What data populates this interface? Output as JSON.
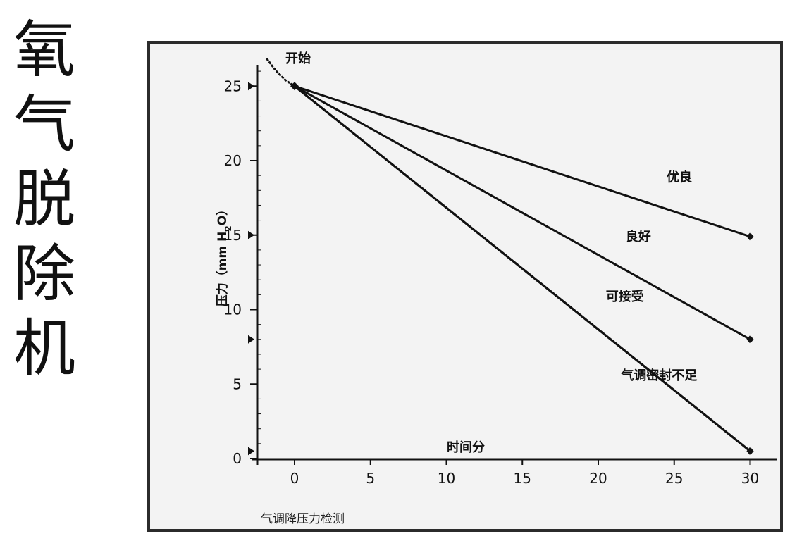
{
  "side_title": [
    "氧",
    "气",
    "脱",
    "除",
    "机"
  ],
  "caption": "气调降压力检测",
  "colors": {
    "line": "#111111",
    "frame": "#2b2b2b",
    "plot_background": "#f3f3f3"
  },
  "chart_data": {
    "type": "line",
    "title": "",
    "xlabel": "时间分",
    "ylabel": "压力（mm H2O）",
    "ylabel_parts": {
      "main": "压力（mm H",
      "sub": "2",
      "tail": "O）"
    },
    "xlim": [
      -2,
      31
    ],
    "ylim": [
      0,
      27
    ],
    "x_ticks": [
      0,
      5,
      10,
      15,
      20,
      25,
      30
    ],
    "y_ticks": [
      0,
      5,
      10,
      15,
      20,
      25
    ],
    "y_arrow_marks": [
      0.5,
      8,
      15,
      25
    ],
    "start_label": "开始",
    "start_curve": [
      [
        -1.8,
        26.8
      ],
      [
        -1.2,
        26.0
      ],
      [
        -0.6,
        25.4
      ],
      [
        0,
        25
      ]
    ],
    "series": [
      {
        "name": "优良",
        "x": [
          0,
          30
        ],
        "y": [
          25,
          14.9
        ],
        "label_anchor": [
          24.5,
          18.6
        ]
      },
      {
        "name": "良好",
        "x": [
          0,
          30
        ],
        "y": [
          25,
          8.0
        ],
        "label_anchor": [
          21.8,
          14.6
        ]
      },
      {
        "name": "可接受",
        "x": [
          0,
          30
        ],
        "y": [
          25,
          0.5
        ],
        "label_anchor": [
          20.5,
          10.6
        ]
      },
      {
        "name": "气调密封不足",
        "x": [
          0,
          30
        ],
        "y": [
          25,
          0.5
        ],
        "label_anchor": [
          21.5,
          5.3
        ]
      }
    ],
    "grid": false,
    "legend": "none"
  }
}
